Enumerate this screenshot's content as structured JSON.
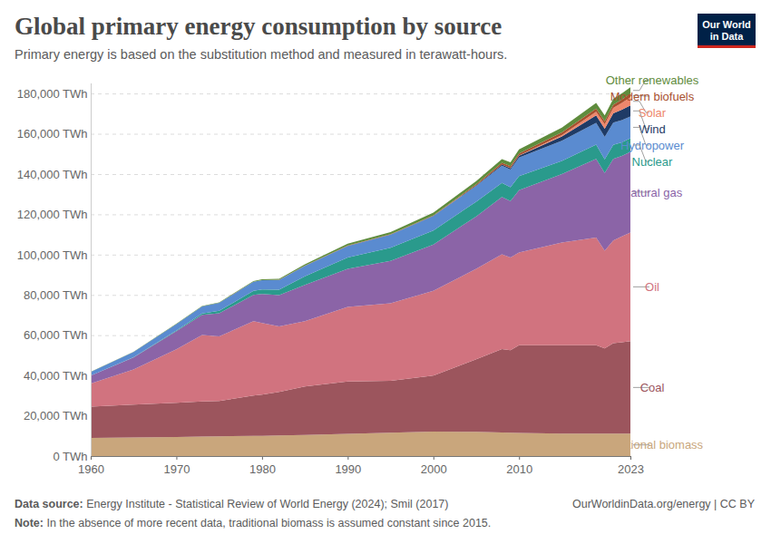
{
  "chart_data": {
    "type": "area",
    "stacked": true,
    "title": "Global primary energy consumption by source",
    "subtitle": "Primary energy is based on the substitution method and measured in terawatt-hours.",
    "source_label": "Data source:",
    "source": "Energy Institute - Statistical Review of World Energy (2024); Smil (2017)",
    "url": "OurWorldinData.org/energy | CC BY",
    "note_label": "Note:",
    "note": "In the absence of more recent data, traditional biomass is assumed constant since 2015.",
    "logo": [
      "Our World",
      "in Data"
    ],
    "grid": true,
    "x": [
      1960,
      1965,
      1970,
      1973,
      1975,
      1979,
      1980,
      1982,
      1985,
      1990,
      1995,
      2000,
      2005,
      2008,
      2009,
      2010,
      2015,
      2019,
      2020,
      2021,
      2022,
      2023
    ],
    "xlim": [
      1960,
      2023
    ],
    "xticks": [
      1960,
      1970,
      1980,
      1990,
      2000,
      2010,
      2023
    ],
    "ylim": [
      0,
      185000
    ],
    "yticks": [
      {
        "value": 0,
        "label": "0 TWh"
      },
      {
        "value": 20000,
        "label": "20,000 TWh"
      },
      {
        "value": 40000,
        "label": "40,000 TWh"
      },
      {
        "value": 60000,
        "label": "60,000 TWh"
      },
      {
        "value": 80000,
        "label": "80,000 TWh"
      },
      {
        "value": 100000,
        "label": "100,000 TWh"
      },
      {
        "value": 120000,
        "label": "120,000 TWh"
      },
      {
        "value": 140000,
        "label": "140,000 TWh"
      },
      {
        "value": 160000,
        "label": "160,000 TWh"
      },
      {
        "value": 180000,
        "label": "180,000 TWh"
      }
    ],
    "series": [
      {
        "name": "Traditional biomass",
        "color": "#c9a67c",
        "values": [
          9000,
          9200,
          9500,
          9700,
          9800,
          10000,
          10000,
          10200,
          10500,
          11000,
          11600,
          12200,
          12000,
          11700,
          11600,
          11500,
          11100,
          11100,
          11100,
          11100,
          11100,
          11100
        ]
      },
      {
        "name": "Coal",
        "color": "#9c555d",
        "values": [
          15500,
          16300,
          17000,
          17400,
          17600,
          20000,
          20500,
          21700,
          24000,
          26000,
          25800,
          27800,
          36000,
          41400,
          41000,
          43500,
          43900,
          43900,
          42400,
          44900,
          45400,
          45900
        ]
      },
      {
        "name": "Oil",
        "color": "#d1737f",
        "values": [
          11500,
          17500,
          26500,
          33000,
          32000,
          37000,
          35500,
          32500,
          32500,
          37000,
          38500,
          42000,
          45000,
          47000,
          46000,
          46000,
          51000,
          53500,
          48500,
          51000,
          52500,
          54000
        ]
      },
      {
        "name": "Natural gas",
        "color": "#8b64a7",
        "values": [
          4000,
          6000,
          9000,
          10000,
          11500,
          13000,
          14500,
          15500,
          18000,
          19000,
          21000,
          23000,
          26000,
          28500,
          28000,
          31000,
          34000,
          39000,
          38500,
          40500,
          40000,
          40000
        ]
      },
      {
        "name": "Nuclear",
        "color": "#2a9a8c",
        "values": [
          0,
          100,
          300,
          700,
          1200,
          2000,
          2200,
          2700,
          4200,
          5600,
          6500,
          7000,
          7300,
          7000,
          6900,
          7000,
          6500,
          7100,
          6800,
          7000,
          6700,
          6800
        ]
      },
      {
        "name": "Hydropower",
        "color": "#5a8bd0",
        "values": [
          1800,
          2500,
          3200,
          3500,
          4000,
          4500,
          4600,
          4800,
          5200,
          5700,
          6500,
          7200,
          7800,
          8500,
          8700,
          9200,
          10000,
          10800,
          11100,
          11000,
          11100,
          10800
        ]
      },
      {
        "name": "Wind",
        "color": "#1f3b66",
        "values": [
          0,
          0,
          0,
          0,
          0,
          0,
          0,
          0,
          0,
          10,
          20,
          80,
          270,
          580,
          730,
          900,
          2200,
          3700,
          4100,
          4700,
          5200,
          5500
        ]
      },
      {
        "name": "Solar",
        "color": "#ee876c",
        "values": [
          0,
          0,
          0,
          0,
          0,
          0,
          0,
          0,
          0,
          0,
          0,
          5,
          10,
          30,
          50,
          80,
          690,
          1850,
          2200,
          2600,
          3300,
          4000
        ]
      },
      {
        "name": "Modern biofuels",
        "color": "#a8502e",
        "values": [
          0,
          0,
          0,
          0,
          0,
          50,
          70,
          100,
          150,
          200,
          200,
          250,
          500,
          900,
          1000,
          1100,
          1300,
          1600,
          1500,
          1600,
          1700,
          1800
        ]
      },
      {
        "name": "Other renewables",
        "color": "#5f8c3d",
        "values": [
          100,
          150,
          200,
          230,
          250,
          350,
          400,
          450,
          600,
          900,
          1100,
          1300,
          1600,
          1850,
          1900,
          2000,
          2400,
          2800,
          2900,
          3000,
          3100,
          3200
        ]
      }
    ]
  }
}
